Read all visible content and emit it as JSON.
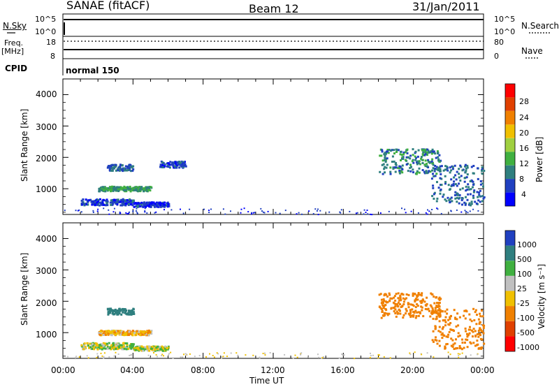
{
  "header": {
    "radar": "SANAE (fitACF)",
    "beam": "Beam 12",
    "date": "31/Jan/2011"
  },
  "noise_panel": {
    "left_label": "N.Sky",
    "left_ticks": [
      "10^5",
      "10^0"
    ],
    "right_label": "N.Search",
    "right_ticks": [
      "10^5",
      "10^0"
    ]
  },
  "freq_panel": {
    "left_label_line1": "Freq.",
    "left_label_line2": "[MHz]",
    "left_ticks": [
      "18",
      "8"
    ],
    "right_label": "Nave",
    "right_ticks": [
      "80",
      "0"
    ]
  },
  "cpid_panel": {
    "label": "CPID",
    "value": "normal 150"
  },
  "x_axis": {
    "label": "Time UT",
    "ticks": [
      "00:00",
      "04:00",
      "08:00",
      "12:00",
      "16:00",
      "20:00",
      "00:00"
    ]
  },
  "power_panel": {
    "ylabel": "Slant Range [km]",
    "yticks": [
      "4000",
      "3000",
      "2000",
      "1000"
    ],
    "colorbar_label": "Power [dB]",
    "colorbar_ticks": [
      "28",
      "24",
      "20",
      "16",
      "12",
      "8",
      "4"
    ],
    "colors": [
      "#0000ff",
      "#2040c0",
      "#2f7f7f",
      "#40b040",
      "#a0d040",
      "#f0c000",
      "#f08000",
      "#e04000",
      "#ff0000"
    ]
  },
  "velocity_panel": {
    "ylabel": "Slant Range [km]",
    "yticks": [
      "4000",
      "3000",
      "2000",
      "1000"
    ],
    "colorbar_label": "Velocity  [m s⁻¹]",
    "colorbar_ticks": [
      "1000",
      "500",
      "100",
      "25",
      "-25",
      "-100",
      "-500",
      "-1000"
    ],
    "colors": [
      "#2040c0",
      "#2f7f7f",
      "#40b040",
      "#c0c0c0",
      "#f0c000",
      "#f08000",
      "#e04000",
      "#ff0000"
    ]
  },
  "chart_data": [
    {
      "type": "heatmap",
      "title": "Power",
      "xlabel": "Time UT",
      "ylabel": "Slant Range [km]",
      "xlim": [
        0,
        24
      ],
      "ylim": [
        180,
        4500
      ],
      "colorbar_label": "Power [dB]",
      "clim": [
        0,
        32
      ],
      "patches": [
        {
          "t": [
            1.0,
            4.0
          ],
          "r": [
            500,
            700
          ],
          "v": 6
        },
        {
          "t": [
            2.0,
            5.0
          ],
          "r": [
            950,
            1100
          ],
          "v": 12
        },
        {
          "t": [
            2.5,
            4.0
          ],
          "r": [
            1600,
            1800
          ],
          "v": 8
        },
        {
          "t": [
            4.0,
            6.0
          ],
          "r": [
            450,
            600
          ],
          "v": 5
        },
        {
          "t": [
            5.5,
            7.0
          ],
          "r": [
            1700,
            1900
          ],
          "v": 6
        },
        {
          "t": [
            18.0,
            21.5
          ],
          "r": [
            1500,
            2300
          ],
          "v": 10
        },
        {
          "t": [
            21.0,
            24.0
          ],
          "r": [
            500,
            1800
          ],
          "v": 8
        }
      ]
    },
    {
      "type": "heatmap",
      "title": "Velocity",
      "xlabel": "Time UT",
      "ylabel": "Slant Range [km]",
      "xlim": [
        0,
        24
      ],
      "ylim": [
        180,
        4500
      ],
      "colorbar_label": "Velocity  [m s⁻¹]",
      "clim": [
        -1000,
        1000
      ],
      "patches": [
        {
          "t": [
            1.0,
            4.0
          ],
          "r": [
            500,
            700
          ],
          "v": 0
        },
        {
          "t": [
            2.0,
            5.0
          ],
          "r": [
            950,
            1100
          ],
          "v": -80
        },
        {
          "t": [
            2.5,
            4.0
          ],
          "r": [
            1600,
            1800
          ],
          "v": 200
        },
        {
          "t": [
            4.0,
            6.0
          ],
          "r": [
            450,
            600
          ],
          "v": 0
        },
        {
          "t": [
            18.0,
            21.5
          ],
          "r": [
            1500,
            2300
          ],
          "v": -300
        },
        {
          "t": [
            21.0,
            24.0
          ],
          "r": [
            500,
            1800
          ],
          "v": -200
        }
      ]
    }
  ]
}
